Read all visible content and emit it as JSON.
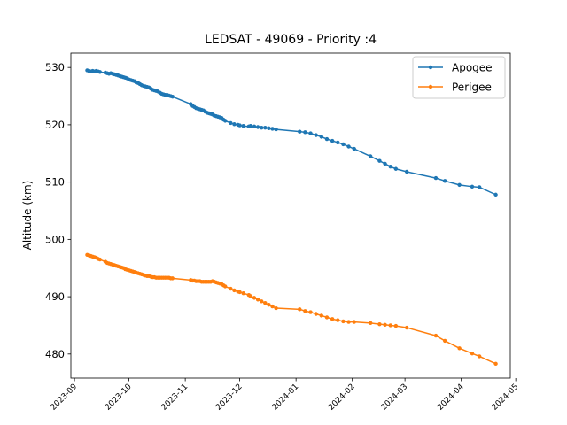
{
  "chart_data": {
    "type": "line",
    "title": "LEDSAT - 49069 - Priority :4",
    "xlabel": "",
    "ylabel": "Altitude (km)",
    "x_type": "date",
    "xlim": [
      "2023-08-30",
      "2024-04-28"
    ],
    "ylim": [
      475.8,
      532.5
    ],
    "x_ticks": [
      "2023-09",
      "2023-10",
      "2023-11",
      "2023-12",
      "2024-01",
      "2024-02",
      "2024-03",
      "2024-04",
      "2024-05"
    ],
    "y_ticks": [
      480,
      490,
      500,
      510,
      520,
      530
    ],
    "grid": false,
    "legend_position": "top-right",
    "series": [
      {
        "name": "Apogee",
        "color": "#1f77b4",
        "x": [
          "2023-09-08",
          "2023-09-09",
          "2023-09-10",
          "2023-09-11",
          "2023-09-12",
          "2023-09-13",
          "2023-09-14",
          "2023-09-15",
          "2023-09-18",
          "2023-09-19",
          "2023-09-20",
          "2023-09-21",
          "2023-09-22",
          "2023-09-23",
          "2023-09-24",
          "2023-09-25",
          "2023-09-26",
          "2023-09-27",
          "2023-09-28",
          "2023-09-29",
          "2023-09-30",
          "2023-10-01",
          "2023-10-02",
          "2023-10-03",
          "2023-10-04",
          "2023-10-05",
          "2023-10-06",
          "2023-10-07",
          "2023-10-08",
          "2023-10-09",
          "2023-10-10",
          "2023-10-11",
          "2023-10-12",
          "2023-10-13",
          "2023-10-14",
          "2023-10-15",
          "2023-10-16",
          "2023-10-17",
          "2023-10-18",
          "2023-10-19",
          "2023-10-20",
          "2023-10-21",
          "2023-10-22",
          "2023-10-23",
          "2023-10-24",
          "2023-10-25",
          "2023-11-04",
          "2023-11-05",
          "2023-11-06",
          "2023-11-07",
          "2023-11-08",
          "2023-11-09",
          "2023-11-10",
          "2023-11-11",
          "2023-11-12",
          "2023-11-13",
          "2023-11-14",
          "2023-11-15",
          "2023-11-16",
          "2023-11-17",
          "2023-11-18",
          "2023-11-19",
          "2023-11-20",
          "2023-11-21",
          "2023-11-22",
          "2023-11-23",
          "2023-11-26",
          "2023-11-28",
          "2023-11-30",
          "2023-12-01",
          "2023-12-03",
          "2023-12-06",
          "2023-12-07",
          "2023-12-09",
          "2023-12-11",
          "2023-12-13",
          "2023-12-15",
          "2023-12-17",
          "2023-12-19",
          "2023-12-21",
          "2024-01-03",
          "2024-01-06",
          "2024-01-09",
          "2024-01-12",
          "2024-01-15",
          "2024-01-18",
          "2024-01-21",
          "2024-01-24",
          "2024-01-27",
          "2024-01-30",
          "2024-02-02",
          "2024-02-11",
          "2024-02-16",
          "2024-02-19",
          "2024-02-22",
          "2024-02-25",
          "2024-03-02",
          "2024-03-18",
          "2024-03-23",
          "2024-03-31",
          "2024-04-07",
          "2024-04-11",
          "2024-04-20"
        ],
        "values": [
          529.5,
          529.4,
          529.3,
          529.4,
          529.3,
          529.4,
          529.3,
          529.2,
          529.1,
          529.0,
          528.9,
          529.0,
          528.9,
          528.8,
          528.7,
          528.6,
          528.5,
          528.4,
          528.3,
          528.2,
          528.1,
          527.9,
          527.8,
          527.7,
          527.6,
          527.4,
          527.3,
          527.1,
          526.9,
          526.8,
          526.7,
          526.6,
          526.5,
          526.3,
          526.1,
          526.0,
          525.9,
          525.8,
          525.6,
          525.4,
          525.3,
          525.2,
          525.2,
          525.1,
          525.0,
          524.9,
          523.6,
          523.3,
          523.1,
          522.9,
          522.8,
          522.7,
          522.6,
          522.5,
          522.3,
          522.1,
          522.0,
          521.9,
          521.8,
          521.6,
          521.5,
          521.4,
          521.3,
          521.2,
          520.9,
          520.7,
          520.3,
          520.1,
          520.0,
          519.9,
          519.8,
          519.7,
          519.8,
          519.7,
          519.6,
          519.5,
          519.5,
          519.4,
          519.3,
          519.2,
          518.8,
          518.7,
          518.5,
          518.2,
          517.9,
          517.5,
          517.2,
          516.9,
          516.6,
          516.2,
          515.8,
          514.5,
          513.7,
          513.2,
          512.7,
          512.3,
          511.8,
          510.7,
          510.2,
          509.5,
          509.2,
          509.1,
          507.8
        ]
      },
      {
        "name": "Perigee",
        "color": "#ff7f0e",
        "x": [
          "2023-09-08",
          "2023-09-09",
          "2023-09-10",
          "2023-09-11",
          "2023-09-12",
          "2023-09-13",
          "2023-09-14",
          "2023-09-15",
          "2023-09-18",
          "2023-09-19",
          "2023-09-20",
          "2023-09-21",
          "2023-09-22",
          "2023-09-23",
          "2023-09-24",
          "2023-09-25",
          "2023-09-26",
          "2023-09-27",
          "2023-09-28",
          "2023-09-29",
          "2023-09-30",
          "2023-10-01",
          "2023-10-02",
          "2023-10-03",
          "2023-10-04",
          "2023-10-05",
          "2023-10-06",
          "2023-10-07",
          "2023-10-08",
          "2023-10-09",
          "2023-10-10",
          "2023-10-11",
          "2023-10-12",
          "2023-10-13",
          "2023-10-14",
          "2023-10-15",
          "2023-10-16",
          "2023-10-17",
          "2023-10-18",
          "2023-10-19",
          "2023-10-20",
          "2023-10-21",
          "2023-10-22",
          "2023-10-23",
          "2023-10-24",
          "2023-10-25",
          "2023-11-04",
          "2023-11-05",
          "2023-11-06",
          "2023-11-07",
          "2023-11-08",
          "2023-11-09",
          "2023-11-10",
          "2023-11-11",
          "2023-11-12",
          "2023-11-13",
          "2023-11-14",
          "2023-11-15",
          "2023-11-16",
          "2023-11-17",
          "2023-11-18",
          "2023-11-19",
          "2023-11-20",
          "2023-11-21",
          "2023-11-22",
          "2023-11-23",
          "2023-11-26",
          "2023-11-28",
          "2023-11-30",
          "2023-12-01",
          "2023-12-03",
          "2023-12-06",
          "2023-12-07",
          "2023-12-09",
          "2023-12-11",
          "2023-12-13",
          "2023-12-15",
          "2023-12-17",
          "2023-12-19",
          "2023-12-21",
          "2024-01-03",
          "2024-01-06",
          "2024-01-09",
          "2024-01-12",
          "2024-01-15",
          "2024-01-18",
          "2024-01-21",
          "2024-01-24",
          "2024-01-27",
          "2024-01-30",
          "2024-02-02",
          "2024-02-11",
          "2024-02-16",
          "2024-02-19",
          "2024-02-22",
          "2024-02-25",
          "2024-03-02",
          "2024-03-18",
          "2024-03-23",
          "2024-03-31",
          "2024-04-07",
          "2024-04-11",
          "2024-04-20"
        ],
        "values": [
          497.3,
          497.2,
          497.1,
          497.0,
          496.9,
          496.8,
          496.6,
          496.5,
          496.1,
          495.9,
          495.8,
          495.7,
          495.6,
          495.5,
          495.4,
          495.3,
          495.2,
          495.1,
          495.0,
          494.8,
          494.7,
          494.6,
          494.5,
          494.4,
          494.3,
          494.2,
          494.1,
          494.0,
          493.9,
          493.8,
          493.7,
          493.6,
          493.6,
          493.5,
          493.4,
          493.4,
          493.3,
          493.3,
          493.3,
          493.3,
          493.3,
          493.3,
          493.3,
          493.3,
          493.2,
          493.2,
          492.9,
          492.8,
          492.8,
          492.7,
          492.7,
          492.7,
          492.6,
          492.6,
          492.6,
          492.6,
          492.6,
          492.6,
          492.7,
          492.6,
          492.5,
          492.4,
          492.3,
          492.2,
          492.0,
          491.8,
          491.4,
          491.1,
          490.9,
          490.8,
          490.6,
          490.3,
          490.1,
          489.8,
          489.5,
          489.2,
          488.9,
          488.6,
          488.3,
          488.0,
          487.8,
          487.5,
          487.3,
          487.0,
          486.7,
          486.4,
          486.1,
          485.9,
          485.7,
          485.6,
          485.6,
          485.4,
          485.2,
          485.1,
          485.0,
          484.9,
          484.6,
          483.2,
          482.3,
          481.0,
          480.1,
          479.6,
          478.3
        ]
      }
    ]
  }
}
